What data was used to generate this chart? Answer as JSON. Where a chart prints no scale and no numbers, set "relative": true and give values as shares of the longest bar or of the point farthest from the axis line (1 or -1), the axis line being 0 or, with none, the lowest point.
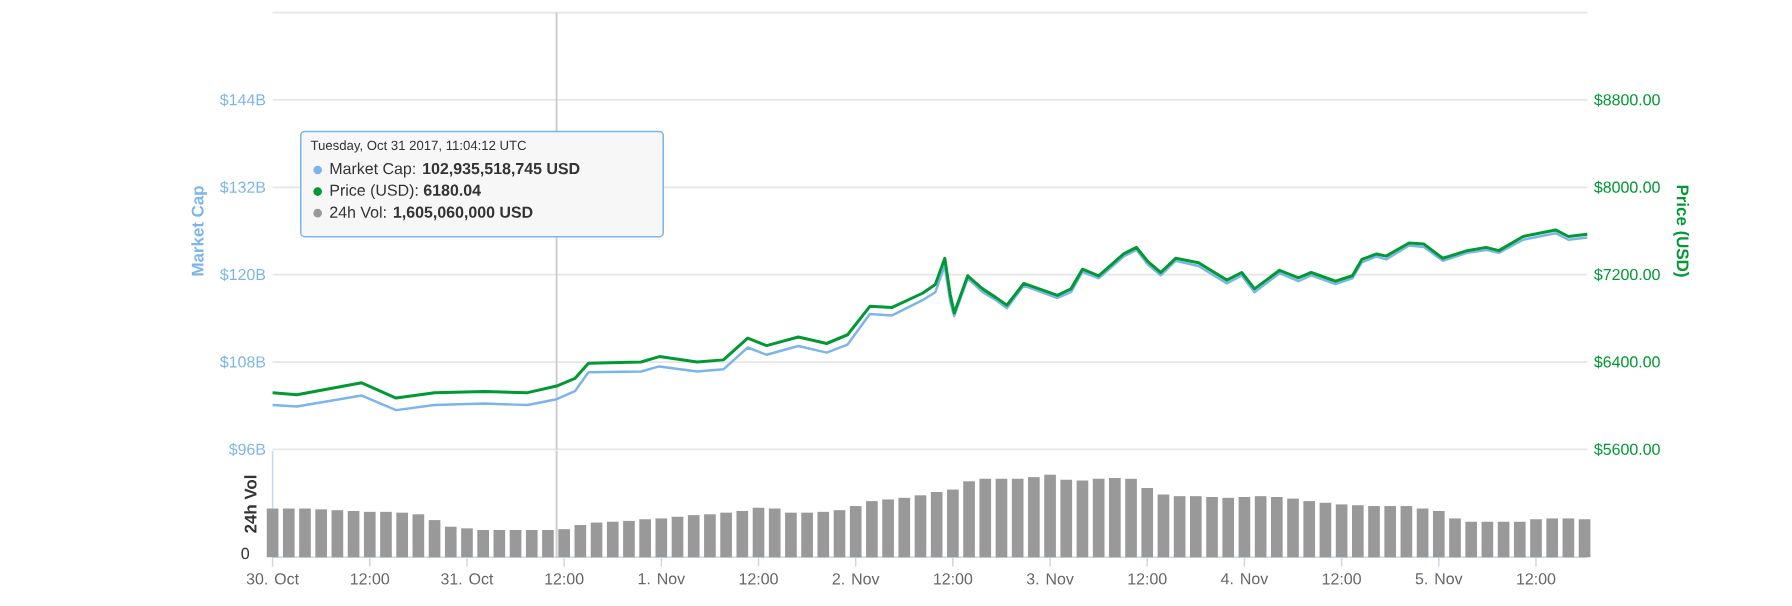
{
  "chart_data": [
    {
      "type": "line",
      "ylabel": "Market Cap",
      "y2label": "Price (USD)",
      "x": [
        "2017-10-30T00:00",
        "2017-10-30T03:00",
        "2017-10-30T11:00",
        "2017-10-30T15:15",
        "2017-10-30T20:00",
        "2017-10-31T02:10",
        "2017-10-31T07:30",
        "2017-10-31T11:04",
        "2017-10-31T13:20",
        "2017-10-31T15:00",
        "2017-10-31T21:30",
        "2017-10-31T23:45",
        "2017-11-01T04:25",
        "2017-11-01T07:40",
        "2017-11-01T10:40",
        "2017-11-01T13:00",
        "2017-11-01T16:55",
        "2017-11-01T20:25",
        "2017-11-01T23:00",
        "2017-11-02T01:45",
        "2017-11-02T04:30",
        "2017-11-02T08:15",
        "2017-11-02T09:50",
        "2017-11-02T11:00",
        "2017-11-02T11:40",
        "2017-11-02T12:10",
        "2017-11-02T13:50",
        "2017-11-02T15:40",
        "2017-11-02T17:20",
        "2017-11-02T18:40",
        "2017-11-02T20:45",
        "2017-11-03T00:55",
        "2017-11-03T02:35",
        "2017-11-03T04:00",
        "2017-11-03T06:00",
        "2017-11-03T09:05",
        "2017-11-03T10:40",
        "2017-11-03T12:05",
        "2017-11-03T13:40",
        "2017-11-03T15:30",
        "2017-11-03T18:20",
        "2017-11-03T21:50",
        "2017-11-03T23:40",
        "2017-11-04T01:15",
        "2017-11-04T04:20",
        "2017-11-04T06:40",
        "2017-11-04T08:15",
        "2017-11-04T11:15",
        "2017-11-04T13:20",
        "2017-11-04T14:30",
        "2017-11-04T16:20",
        "2017-11-04T17:30",
        "2017-11-04T20:20",
        "2017-11-04T22:10",
        "2017-11-05T00:30",
        "2017-11-05T03:30",
        "2017-11-05T05:50",
        "2017-11-05T07:25",
        "2017-11-05T10:25",
        "2017-11-05T14:25",
        "2017-11-05T16:00",
        "2017-11-05T18:20"
      ],
      "series": [
        {
          "color": "#7cb5ec",
          "values": [
            102.1,
            101.9,
            103.4,
            101.4,
            102.1,
            102.3,
            102.1,
            102.9,
            104.0,
            106.6,
            106.7,
            107.4,
            106.7,
            107.0,
            110.0,
            109.0,
            110.2,
            109.3,
            110.4,
            114.6,
            114.4,
            116.5,
            117.6,
            121.2,
            116.3,
            114.3,
            119.5,
            117.6,
            116.5,
            115.4,
            118.5,
            116.8,
            117.6,
            120.4,
            119.5,
            122.5,
            123.4,
            121.4,
            119.9,
            121.9,
            121.2,
            118.8,
            119.9,
            117.6,
            120.2,
            119.1,
            119.9,
            118.7,
            119.5,
            121.7,
            122.5,
            122.1,
            124.0,
            123.8,
            121.9,
            123.0,
            123.4,
            123.0,
            124.8,
            125.7,
            124.8,
            125.1
          ]
        },
        {
          "color": "#009933",
          "axis": "y2",
          "values": [
            6120,
            6100,
            6210,
            6070,
            6120,
            6130,
            6120,
            6180,
            6250,
            6390,
            6400,
            6450,
            6400,
            6420,
            6620,
            6550,
            6630,
            6570,
            6650,
            6910,
            6900,
            7030,
            7110,
            7350,
            7020,
            6850,
            7190,
            7070,
            6990,
            6920,
            7120,
            7010,
            7070,
            7250,
            7190,
            7390,
            7450,
            7320,
            7220,
            7350,
            7310,
            7150,
            7220,
            7070,
            7240,
            7170,
            7220,
            7140,
            7190,
            7340,
            7390,
            7370,
            7490,
            7480,
            7350,
            7420,
            7450,
            7420,
            7550,
            7610,
            7550,
            7570
          ]
        }
      ],
      "xlim": [
        "2017-10-30T00:00",
        "2017-11-05T18:20"
      ],
      "ylim": [
        96,
        156
      ],
      "yticks": [
        {
          "value": 96,
          "label": "$96B"
        },
        {
          "value": 108,
          "label": "$108B"
        },
        {
          "value": 120,
          "label": "$120B"
        },
        {
          "value": 132,
          "label": "$132B"
        },
        {
          "value": 144,
          "label": "$144B"
        },
        {
          "value": 156,
          "label": null
        }
      ],
      "y2lim": [
        5600,
        9600
      ],
      "y2ticks": [
        {
          "value": 5600,
          "label": "$5600.00"
        },
        {
          "value": 6400,
          "label": "$6400.00"
        },
        {
          "value": 7200,
          "label": "$7200.00"
        },
        {
          "value": 8000,
          "label": "$8000.00"
        },
        {
          "value": 8800,
          "label": "$8800.00"
        },
        {
          "value": 9600,
          "label": null
        }
      ],
      "grid": "y",
      "tick_labels": "y",
      "ref_lines": [
        {
          "axis": "x",
          "value": "2017-10-31T11:04",
          "color": "#cccccc"
        }
      ],
      "annotations": [
        "Tuesday, Oct 31 2017, 11:04:12 UTC",
        "Market Cap: **102,935,518,745 USD**",
        "Price (USD): **6180.04**",
        "24h Vol: **1,605,060,000 USD**"
      ]
    },
    {
      "type": "bar",
      "ylabel": "24h Vol",
      "relative": true,
      "x": [
        "2017-10-30T00:00",
        "2017-10-30T02:00",
        "2017-10-30T04:00",
        "2017-10-30T06:00",
        "2017-10-30T08:00",
        "2017-10-30T10:00",
        "2017-10-30T12:00",
        "2017-10-30T14:00",
        "2017-10-30T16:00",
        "2017-10-30T18:00",
        "2017-10-30T20:00",
        "2017-10-30T22:00",
        "2017-10-31T00:00",
        "2017-10-31T02:00",
        "2017-10-31T04:00",
        "2017-10-31T06:00",
        "2017-10-31T08:00",
        "2017-10-31T10:00",
        "2017-10-31T12:00",
        "2017-10-31T14:00",
        "2017-10-31T16:00",
        "2017-10-31T18:00",
        "2017-10-31T20:00",
        "2017-10-31T22:00",
        "2017-11-01T00:00",
        "2017-11-01T02:00",
        "2017-11-01T04:00",
        "2017-11-01T06:00",
        "2017-11-01T08:00",
        "2017-11-01T10:00",
        "2017-11-01T12:00",
        "2017-11-01T14:00",
        "2017-11-01T16:00",
        "2017-11-01T18:00",
        "2017-11-01T20:00",
        "2017-11-01T22:00",
        "2017-11-02T00:00",
        "2017-11-02T02:00",
        "2017-11-02T04:00",
        "2017-11-02T06:00",
        "2017-11-02T08:00",
        "2017-11-02T10:00",
        "2017-11-02T12:00",
        "2017-11-02T14:00",
        "2017-11-02T16:00",
        "2017-11-02T18:00",
        "2017-11-02T20:00",
        "2017-11-02T22:00",
        "2017-11-03T00:00",
        "2017-11-03T02:00",
        "2017-11-03T04:00",
        "2017-11-03T06:00",
        "2017-11-03T08:00",
        "2017-11-03T10:00",
        "2017-11-03T12:00",
        "2017-11-03T14:00",
        "2017-11-03T16:00",
        "2017-11-03T18:00",
        "2017-11-03T20:00",
        "2017-11-03T22:00",
        "2017-11-04T00:00",
        "2017-11-04T02:00",
        "2017-11-04T04:00",
        "2017-11-04T06:00",
        "2017-11-04T08:00",
        "2017-11-04T10:00",
        "2017-11-04T12:00",
        "2017-11-04T14:00",
        "2017-11-04T16:00",
        "2017-11-04T18:00",
        "2017-11-04T20:00",
        "2017-11-04T22:00",
        "2017-11-05T00:00",
        "2017-11-05T02:00",
        "2017-11-05T04:00",
        "2017-11-05T06:00",
        "2017-11-05T08:00",
        "2017-11-05T10:00",
        "2017-11-05T12:00",
        "2017-11-05T14:00",
        "2017-11-05T16:00",
        "2017-11-05T18:00"
      ],
      "series": [
        {
          "color": "#999999",
          "values": [
            0.59,
            0.59,
            0.59,
            0.58,
            0.57,
            0.56,
            0.55,
            0.55,
            0.54,
            0.52,
            0.45,
            0.37,
            0.35,
            0.33,
            0.33,
            0.33,
            0.33,
            0.33,
            0.34,
            0.39,
            0.42,
            0.43,
            0.44,
            0.46,
            0.47,
            0.49,
            0.51,
            0.52,
            0.54,
            0.56,
            0.6,
            0.59,
            0.54,
            0.54,
            0.55,
            0.57,
            0.62,
            0.68,
            0.7,
            0.72,
            0.75,
            0.79,
            0.82,
            0.92,
            0.95,
            0.95,
            0.95,
            0.97,
            1.0,
            0.94,
            0.93,
            0.95,
            0.96,
            0.95,
            0.84,
            0.76,
            0.74,
            0.74,
            0.73,
            0.72,
            0.73,
            0.74,
            0.73,
            0.71,
            0.68,
            0.66,
            0.64,
            0.63,
            0.62,
            0.62,
            0.62,
            0.59,
            0.56,
            0.47,
            0.43,
            0.43,
            0.43,
            0.43,
            0.46,
            0.47,
            0.47,
            0.46
          ]
        }
      ],
      "xlim": [
        "2017-10-30T00:00",
        "2017-11-05T18:20"
      ],
      "xticks": [
        {
          "value": "2017-10-30T00:00",
          "label": "30. Oct"
        },
        {
          "value": "2017-10-30T12:00",
          "label": "12:00"
        },
        {
          "value": "2017-10-31T00:00",
          "label": "31. Oct"
        },
        {
          "value": "2017-10-31T12:00",
          "label": "12:00"
        },
        {
          "value": "2017-11-01T00:00",
          "label": "1. Nov"
        },
        {
          "value": "2017-11-01T12:00",
          "label": "12:00"
        },
        {
          "value": "2017-11-02T00:00",
          "label": "2. Nov"
        },
        {
          "value": "2017-11-02T12:00",
          "label": "12:00"
        },
        {
          "value": "2017-11-03T00:00",
          "label": "3. Nov"
        },
        {
          "value": "2017-11-03T12:00",
          "label": "12:00"
        },
        {
          "value": "2017-11-04T00:00",
          "label": "4. Nov"
        },
        {
          "value": "2017-11-04T12:00",
          "label": "12:00"
        },
        {
          "value": "2017-11-05T00:00",
          "label": "5. Nov"
        },
        {
          "value": "2017-11-05T12:00",
          "label": "12:00"
        }
      ],
      "ref_lines": [
        {
          "axis": "x",
          "value": "2017-10-31T11:04",
          "color": "#cccccc"
        }
      ],
      "annotations": [
        "0"
      ]
    }
  ]
}
